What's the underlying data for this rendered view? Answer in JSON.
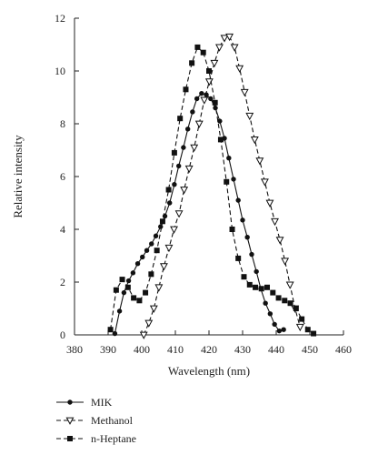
{
  "chart_data": {
    "type": "line",
    "xlabel": "Wavelength (nm)",
    "ylabel": "Relative intensity",
    "xlim": [
      380,
      460
    ],
    "ylim": [
      0,
      12
    ],
    "xticks": [
      380,
      390,
      400,
      410,
      420,
      430,
      440,
      450,
      460
    ],
    "yticks": [
      0,
      2,
      4,
      6,
      8,
      10,
      12
    ],
    "grid": false,
    "legend_position": "bottom-left",
    "series": [
      {
        "name": "MIK",
        "line_style": "solid",
        "marker": "circle",
        "x": [
          392.0,
          393.4,
          394.7,
          396.1,
          397.4,
          398.8,
          400.2,
          401.5,
          402.9,
          404.2,
          405.6,
          406.9,
          408.3,
          409.7,
          411.0,
          412.4,
          413.7,
          415.1,
          416.4,
          417.8,
          419.2,
          420.5,
          421.9,
          423.2,
          424.6,
          425.9,
          427.3,
          428.7,
          430.0,
          431.4,
          432.7,
          434.1,
          435.4,
          436.8,
          438.2,
          439.5,
          440.9,
          442.2
        ],
        "y": [
          0.05,
          0.9,
          1.6,
          2.05,
          2.35,
          2.7,
          2.95,
          3.2,
          3.45,
          3.75,
          4.1,
          4.5,
          5.0,
          5.7,
          6.4,
          7.1,
          7.8,
          8.45,
          8.95,
          9.15,
          9.1,
          8.95,
          8.6,
          8.1,
          7.45,
          6.7,
          5.9,
          5.1,
          4.35,
          3.7,
          3.05,
          2.4,
          1.75,
          1.2,
          0.8,
          0.4,
          0.15,
          0.2
        ]
      },
      {
        "name": "Methanol",
        "line_style": "dashed",
        "marker": "triangle-down",
        "x": [
          400.6,
          402.1,
          403.6,
          405.1,
          406.6,
          408.1,
          409.6,
          411.1,
          412.6,
          414.1,
          415.6,
          417.1,
          418.6,
          420.1,
          421.6,
          423.1,
          424.6,
          426.1,
          427.6,
          429.1,
          430.6,
          432.1,
          433.6,
          435.1,
          436.6,
          438.1,
          439.6,
          441.1,
          442.6,
          444.1,
          445.6,
          447.1
        ],
        "y": [
          0.0,
          0.45,
          1.0,
          1.8,
          2.6,
          3.3,
          4.0,
          4.6,
          5.5,
          6.3,
          7.1,
          8.0,
          8.9,
          9.6,
          10.3,
          10.9,
          11.25,
          11.3,
          10.9,
          10.1,
          9.2,
          8.3,
          7.4,
          6.6,
          5.8,
          5.0,
          4.3,
          3.6,
          2.8,
          1.9,
          1.0,
          0.3
        ]
      },
      {
        "name": "n-Heptane",
        "line_style": "dashed",
        "marker": "square",
        "x": [
          390.7,
          392.4,
          394.2,
          395.9,
          397.6,
          399.3,
          401.1,
          402.8,
          404.5,
          406.2,
          408.0,
          409.7,
          411.4,
          413.1,
          414.9,
          416.6,
          418.3,
          420.0,
          421.8,
          423.5,
          425.2,
          426.9,
          428.7,
          430.4,
          432.1,
          433.8,
          435.6,
          437.3,
          439.0,
          440.7,
          442.5,
          444.2,
          445.9,
          447.6,
          449.4,
          451.1
        ],
        "y": [
          0.2,
          1.7,
          2.1,
          1.8,
          1.4,
          1.3,
          1.6,
          2.3,
          3.2,
          4.3,
          5.5,
          6.9,
          8.2,
          9.3,
          10.3,
          10.9,
          10.7,
          10.0,
          8.8,
          7.4,
          5.8,
          4.0,
          2.9,
          2.2,
          1.9,
          1.8,
          1.75,
          1.8,
          1.6,
          1.4,
          1.3,
          1.2,
          1.0,
          0.6,
          0.2,
          0.05
        ]
      }
    ]
  }
}
